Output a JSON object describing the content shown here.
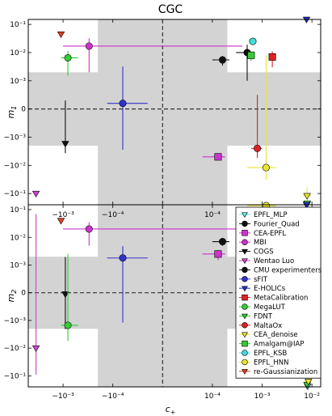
{
  "chart_data": {
    "type": "scatter",
    "title": "CGC",
    "xlabel": "c+",
    "xlabel_main": "c",
    "xlabel_sub": "+",
    "x_scale": "symlog",
    "x_linthresh": 0.0001,
    "xlim": [
      -0.005,
      0.015
    ],
    "x_ticks": [
      {
        "value": -0.001,
        "label": "−10⁻³"
      },
      {
        "value": -0.0001,
        "label": "−10⁻⁴"
      },
      {
        "value": 0.0001,
        "label": "10⁻⁴"
      },
      {
        "value": 0.001,
        "label": "10⁻³"
      },
      {
        "value": 0.01,
        "label": "10⁻²"
      }
    ],
    "x_band": [
      -0.0002,
      0.0002
    ],
    "y_scale": "symlog",
    "y_linthresh": 0.001,
    "y_ticks": [
      {
        "value": 0.1,
        "label": "10⁻¹"
      },
      {
        "value": 0.01,
        "label": "10⁻²"
      },
      {
        "value": 0.001,
        "label": "10⁻³"
      },
      {
        "value": 0,
        "label": "0"
      },
      {
        "value": -0.001,
        "label": "−10⁻³"
      },
      {
        "value": -0.01,
        "label": "−10⁻²"
      },
      {
        "value": -0.1,
        "label": "−10⁻¹"
      }
    ],
    "y_band": [
      -0.002,
      0.002
    ],
    "panels": [
      {
        "id": "m1",
        "ylabel": "m1",
        "ylabel_main": "m",
        "ylabel_sub": "1",
        "ylim": [
          -0.25,
          0.15
        ]
      },
      {
        "id": "m2",
        "ylabel": "m2",
        "ylabel_main": "m",
        "ylabel_sub": "2",
        "ylim": [
          -0.25,
          0.15
        ]
      }
    ],
    "legend_position": "right, lower panel",
    "series": [
      {
        "name": "EPFL_MLP",
        "marker": "tri_down",
        "color": "#66e6e6",
        "m1": {
          "x": 0.008,
          "xerr": 0.0005,
          "y": -0.24,
          "yerr": 0
        },
        "m2": {
          "x": 0.0082,
          "xerr": 0.0005,
          "y": -0.24,
          "yerr": 0
        }
      },
      {
        "name": "Fourier_Quad",
        "marker": "circle",
        "color": "#111111",
        "m1": {
          "x": 0.0005,
          "xerr": 0.0002,
          "y": 0.01,
          "yerr": 0.009
        },
        "m2": {
          "x": 0.0005,
          "xerr": 0.0002,
          "y": -0.007,
          "yerr": 0.009
        }
      },
      {
        "name": "CEA-EPFL",
        "marker": "square",
        "color": "#cc33cc",
        "m1": {
          "x": 0.00013,
          "xerr": 5e-05,
          "y": -0.005,
          "yerr": 0.001
        },
        "m2": {
          "x": 0.00013,
          "xerr": 5e-05,
          "y": 0.0025,
          "yerr": 0.001
        }
      },
      {
        "name": "MBI",
        "marker": "circle",
        "color": "#cc33cc",
        "m1": {
          "x": -0.0003,
          "xerr": 0.0007,
          "y": 0.017,
          "yerr": 0.015
        },
        "m2": {
          "x": -0.0003,
          "xerr": 0.0007,
          "y": 0.02,
          "yerr": 0.015
        }
      },
      {
        "name": "COGS",
        "marker": "tri_down",
        "color": "#111111",
        "m1": {
          "x": -0.0009,
          "xerr": 0,
          "y": -0.0017,
          "yerr": 0.002
        },
        "m2": {
          "x": -0.0009,
          "xerr": 0,
          "y": -5e-05,
          "yerr": 0.002
        }
      },
      {
        "name": "Wentao Luo",
        "marker": "tri_down",
        "color": "#cc44cc",
        "m1": {
          "x": -0.0035,
          "xerr": 0,
          "y": -0.1,
          "yerr": 0
        },
        "m2": {
          "x": -0.0035,
          "xerr": 0,
          "y": -0.01,
          "yerr": 0.08
        }
      },
      {
        "name": "CMU experimenters",
        "marker": "circle",
        "color": "#111111",
        "m1": {
          "x": 0.00016,
          "xerr": 6e-05,
          "y": 0.0055,
          "yerr": 0.002
        },
        "m2": {
          "x": 0.00016,
          "xerr": 6e-05,
          "y": 0.007,
          "yerr": 0.002
        }
      },
      {
        "name": "sFIT",
        "marker": "circle",
        "color": "#3333cc",
        "m1": {
          "x": -8e-05,
          "xerr": 5e-05,
          "y": 0.0002,
          "yerr": 0.003
        },
        "m2": {
          "x": -8e-05,
          "xerr": 5e-05,
          "y": 0.0018,
          "yerr": 0.003
        }
      },
      {
        "name": "E-HOLICs",
        "marker": "tri_down",
        "color": "#2233cc",
        "m1": {
          "x": 0.0078,
          "xerr": 0,
          "y": 0.15,
          "yerr": 0
        },
        "m2": {
          "x": 0.0078,
          "xerr": 0,
          "y": 0.15,
          "yerr": 0
        }
      },
      {
        "name": "MetaCalibration",
        "marker": "square",
        "color": "#dd2222",
        "m1": {
          "x": 0.0016,
          "xerr": 0,
          "y": 0.007,
          "yerr": 0.004
        },
        "m2": {
          "x": 0.0016,
          "xerr": 0,
          "y": -0.011,
          "yerr": 0.005
        }
      },
      {
        "name": "MegaLUT",
        "marker": "circle",
        "color": "#33cc33",
        "m1": {
          "x": -0.0008,
          "xerr": 0.0003,
          "y": 0.0065,
          "yerr": 0.005
        },
        "m2": {
          "x": -0.0008,
          "xerr": 0.0003,
          "y": -0.0015,
          "yerr": 0.004
        }
      },
      {
        "name": "FDNT",
        "marker": "tri_down",
        "color": "#33cc33",
        "m1": {
          "x": 0.008,
          "xerr": 0,
          "y": -0.22,
          "yerr": 0
        },
        "m2": {
          "x": 0.008,
          "xerr": 0,
          "y": -0.21,
          "yerr": 0
        }
      },
      {
        "name": "MaltaOx",
        "marker": "circle",
        "color": "#dd2222",
        "m1": {
          "x": 0.0008,
          "xerr": 0.0002,
          "y": -0.0025,
          "yerr": 0.003
        },
        "m2": {
          "x": 0.0008,
          "xerr": 0.0002,
          "y": -0.008,
          "yerr": 0.004
        }
      },
      {
        "name": "CEA_denoise",
        "marker": "tri_down",
        "color": "#e6e633",
        "m1": {
          "x": 0.008,
          "xerr": 0.0015,
          "y": -0.12,
          "yerr": 0.06
        },
        "m2": {
          "x": 0.0085,
          "xerr": 0.0015,
          "y": -0.16,
          "yerr": 0
        }
      },
      {
        "name": "Amalgam@IAP",
        "marker": "square",
        "color": "#33cc33",
        "m1": {
          "x": 0.0006,
          "xerr": 0.0001,
          "y": 0.008,
          "yerr": 0.003
        },
        "m2": {
          "x": 0.0006,
          "xerr": 0.0001,
          "y": 0.0085,
          "yerr": 0.002
        }
      },
      {
        "name": "EPFL_KSB",
        "marker": "circle",
        "color": "#44dddd",
        "m1": {
          "x": 0.00065,
          "xerr": 0.0001,
          "y": 0.025,
          "yerr": 0
        },
        "m2": {
          "x": 0.00065,
          "xerr": 0.0001,
          "y": 0.035,
          "yerr": 0
        }
      },
      {
        "name": "EPFL_HNN",
        "marker": "circle",
        "color": "#e6e633",
        "m1": {
          "x": 0.0012,
          "xerr": 0.0007,
          "y": -0.012,
          "yerr": 0.02
        },
        "m2": {
          "x": 0.0012,
          "xerr": 0.0007,
          "y": 0.14,
          "yerr": 0
        }
      },
      {
        "name": "re-Gaussianization",
        "marker": "tri_down",
        "color": "#dd4422",
        "m1": {
          "x": -0.0011,
          "xerr": 0,
          "y": 0.045,
          "yerr": 0
        },
        "m2": {
          "x": -0.0011,
          "xerr": 0,
          "y": 0.04,
          "yerr": 0
        }
      }
    ]
  }
}
